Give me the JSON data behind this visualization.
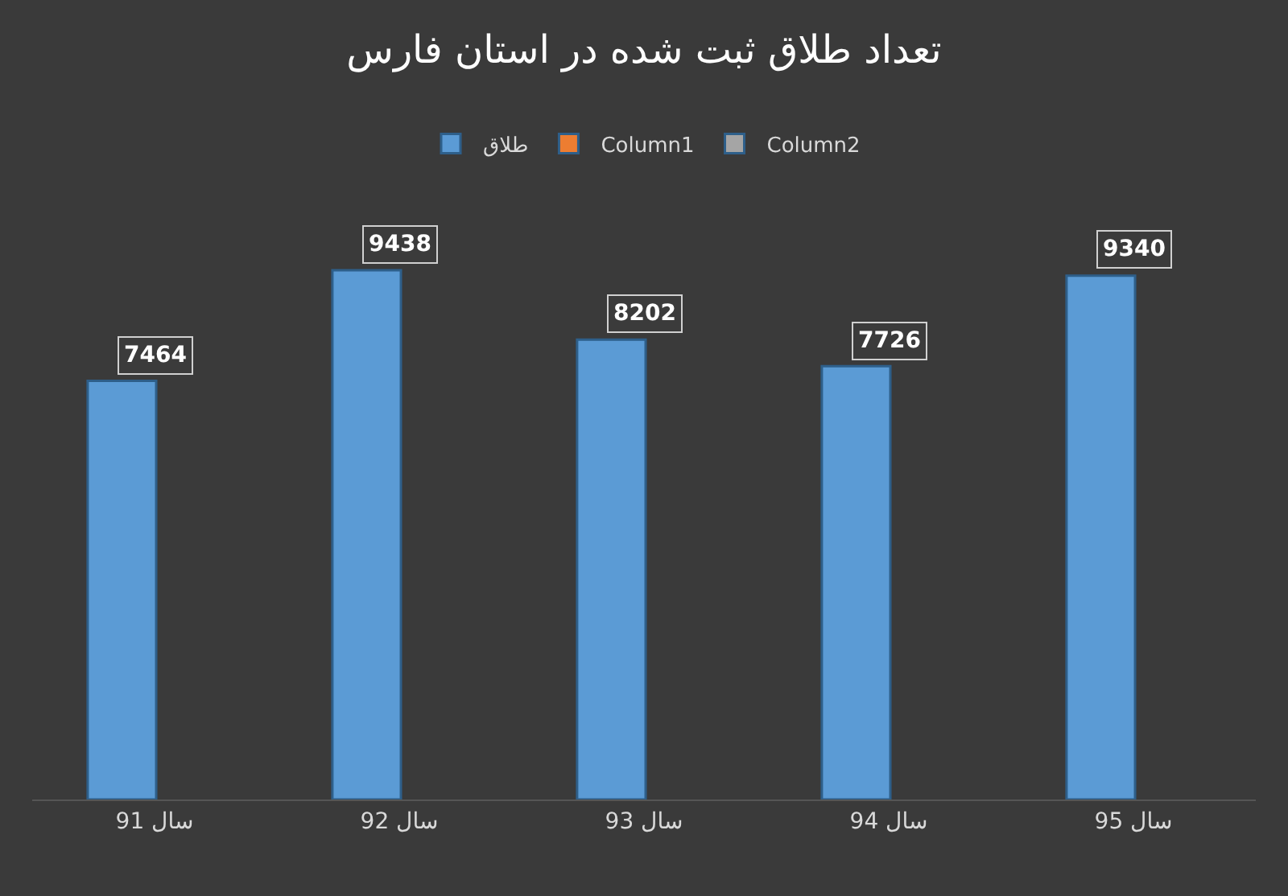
{
  "chart_data": {
    "type": "bar",
    "title": "تعداد طلاق ثبت شده در استان فارس",
    "categories": [
      "سال 91",
      "سال 92",
      "سال 93",
      "سال 94",
      "سال 95"
    ],
    "series": [
      {
        "name": "طلاق",
        "color": "#5b9bd5",
        "values": [
          7464,
          9438,
          8202,
          7726,
          9340
        ]
      },
      {
        "name": "Column1",
        "color": "#ed7d31",
        "values": [
          null,
          null,
          null,
          null,
          null
        ]
      },
      {
        "name": "Column2",
        "color": "#a5a5a5",
        "values": [
          null,
          null,
          null,
          null,
          null
        ]
      }
    ],
    "data_labels": true,
    "legend": "top",
    "grid": false,
    "tick_labels": "x"
  }
}
